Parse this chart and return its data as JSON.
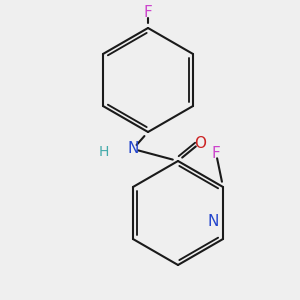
{
  "bg_color": "#efefef",
  "bond_color": "#1a1a1a",
  "bond_width": 1.5,
  "atom_labels": {
    "F_top": {
      "label": "F",
      "color": "#cc44cc",
      "fontsize": 11
    },
    "N_nh": {
      "label": "N",
      "color": "#2244cc",
      "fontsize": 11
    },
    "H_nh": {
      "label": "H",
      "color": "#44aaaa",
      "fontsize": 10
    },
    "O_amide": {
      "label": "O",
      "color": "#cc2222",
      "fontsize": 11
    },
    "F_pyr": {
      "label": "F",
      "color": "#cc44cc",
      "fontsize": 11
    },
    "N_pyr": {
      "label": "N",
      "color": "#2244cc",
      "fontsize": 11
    }
  },
  "bg_color2": "#eeeeee"
}
